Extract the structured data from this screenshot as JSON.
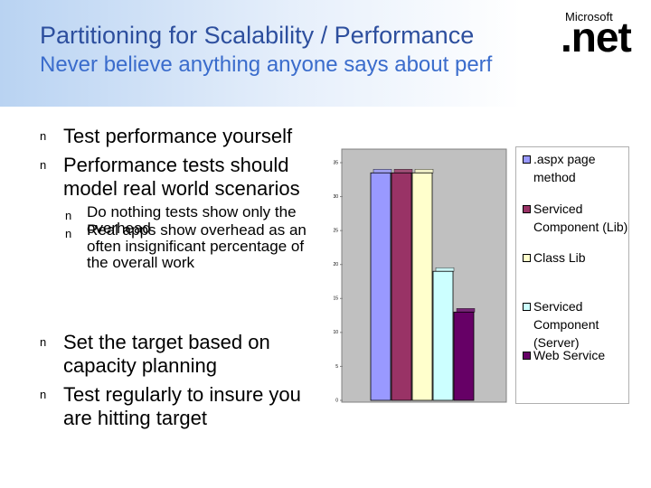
{
  "header": {
    "title": "Partitioning for Scalability / Performance",
    "subtitle": "Never believe anything anyone says about perf"
  },
  "logo": {
    "brand": "Microsoft",
    "product": ".net"
  },
  "bullet": "n",
  "bullets": [
    {
      "level": 1,
      "text": "Test performance yourself"
    },
    {
      "level": 1,
      "text": "Performance tests should model real world scenarios"
    },
    {
      "level": 2,
      "text": "Do nothing tests show only the overhead"
    },
    {
      "level": 2,
      "text": "Real apps show overhead as an often insignificant percentage of the overall work"
    },
    {
      "level": 1,
      "text": "Set the target based on capacity planning"
    },
    {
      "level": 1,
      "text": "Test regularly to insure you are hitting target"
    }
  ],
  "chart_data": {
    "type": "bar",
    "series": [
      {
        "name": ".aspx page method",
        "color": "#9999ff",
        "values": [
          33.5
        ]
      },
      {
        "name": "Serviced Component (Lib)",
        "color": "#993366",
        "values": [
          33.5
        ]
      },
      {
        "name": "Class Lib",
        "color": "#ffffcc",
        "values": [
          33.5
        ]
      },
      {
        "name": "Serviced Component (Server)",
        "color": "#ccffff",
        "values": [
          19
        ]
      },
      {
        "name": "Web Service",
        "color": "#660066",
        "values": [
          13
        ]
      }
    ],
    "ylim": [
      0,
      35
    ],
    "yticks": [
      0,
      5,
      10,
      15,
      20,
      25,
      30,
      35
    ],
    "legend": "right"
  }
}
